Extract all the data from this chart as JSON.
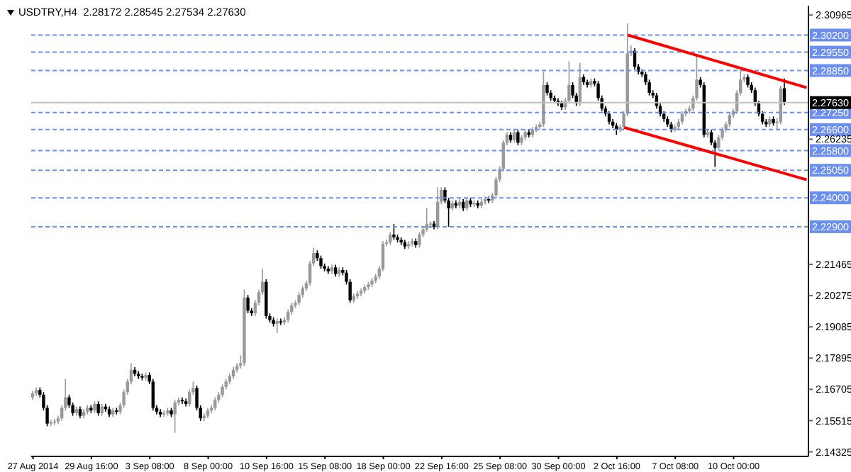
{
  "chart_data": {
    "type": "candlestick",
    "title": "USDTRY,H4  2.28172 2.28545 2.27534 2.27630",
    "categories": [
      "27 Aug 2014",
      null,
      null,
      null,
      null,
      null,
      null,
      null,
      null,
      null,
      null,
      null,
      null,
      null,
      null,
      null,
      "29 Aug 16:00",
      null,
      null,
      null,
      null,
      null,
      null,
      null,
      null,
      null,
      null,
      null,
      null,
      null,
      null,
      null,
      "3 Sep 08:00",
      null,
      null,
      null,
      null,
      null,
      null,
      null,
      null,
      null,
      null,
      null,
      null,
      null,
      null,
      null,
      "8 Sep 00:00",
      null,
      null,
      null,
      null,
      null,
      null,
      null,
      null,
      null,
      null,
      null,
      null,
      null,
      null,
      null,
      "10 Sep 16:00",
      null,
      null,
      null,
      null,
      null,
      null,
      null,
      null,
      null,
      null,
      null,
      null,
      null,
      null,
      null,
      "15 Sep 08:00",
      null,
      null,
      null,
      null,
      null,
      null,
      null,
      null,
      null,
      null,
      null,
      null,
      null,
      null,
      null,
      "18 Sep 00:00",
      null,
      null,
      null,
      null,
      null,
      null,
      null,
      null,
      null,
      null,
      null,
      null,
      null,
      null,
      null,
      "22 Sep 16:00",
      null,
      null,
      null,
      null,
      null,
      null,
      null,
      null,
      null,
      null,
      null,
      null,
      null,
      null,
      null,
      "25 Sep 08:00",
      null,
      null,
      null,
      null,
      null,
      null,
      null,
      null,
      null,
      null,
      null,
      null,
      null,
      null,
      null,
      "30 Sep 00:00",
      null,
      null,
      null,
      null,
      null,
      null,
      null,
      null,
      null,
      null,
      null,
      null,
      null,
      null,
      null,
      "2 Oct 16:00",
      null,
      null,
      null,
      null,
      null,
      null,
      null,
      null,
      null,
      null,
      null,
      null,
      null,
      null,
      null,
      "7 Oct 08:00",
      null,
      null,
      null,
      null,
      null,
      null,
      null,
      null,
      null,
      null,
      null,
      null,
      null,
      null,
      null,
      "10 Oct 00:00",
      null,
      null,
      null,
      null,
      null,
      null,
      null,
      null,
      null,
      null,
      null,
      null,
      null,
      null,
      null,
      null,
      null,
      null,
      null,
      null
    ],
    "ohlc": [
      [
        2.164,
        2.1665,
        2.163,
        2.1655
      ],
      [
        2.1655,
        2.1678,
        2.1645,
        2.1668
      ],
      [
        2.1668,
        2.1678,
        2.164,
        2.165
      ],
      [
        2.165,
        2.166,
        2.159,
        2.16
      ],
      [
        2.16,
        2.161,
        2.153,
        2.154
      ],
      [
        2.154,
        2.1555,
        2.153,
        2.1545
      ],
      [
        2.1545,
        2.1558,
        2.1535,
        2.1548
      ],
      [
        2.1548,
        2.157,
        2.1538,
        2.156
      ],
      [
        2.156,
        2.161,
        2.155,
        2.16
      ],
      [
        2.16,
        2.171,
        2.159,
        2.164
      ],
      [
        2.164,
        2.165,
        2.16,
        2.161
      ],
      [
        2.161,
        2.162,
        2.157,
        2.158
      ],
      [
        2.158,
        2.1605,
        2.157,
        2.1595
      ],
      [
        2.1595,
        2.1605,
        2.156,
        2.157
      ],
      [
        2.157,
        2.1595,
        2.156,
        2.1585
      ],
      [
        2.1585,
        2.161,
        2.1575,
        2.16
      ],
      [
        2.16,
        2.161,
        2.158,
        2.159
      ],
      [
        2.159,
        2.1625,
        2.158,
        2.1615
      ],
      [
        2.1615,
        2.1625,
        2.157,
        2.158
      ],
      [
        2.158,
        2.1615,
        2.157,
        2.1605
      ],
      [
        2.1605,
        2.1615,
        2.1585,
        2.1595
      ],
      [
        2.1595,
        2.1605,
        2.1565,
        2.1575
      ],
      [
        2.1575,
        2.16,
        2.1565,
        2.159
      ],
      [
        2.159,
        2.16,
        2.1575,
        2.1585
      ],
      [
        2.1585,
        2.162,
        2.1575,
        2.161
      ],
      [
        2.161,
        2.167,
        2.16,
        2.166
      ],
      [
        2.166,
        2.171,
        2.165,
        2.17
      ],
      [
        2.17,
        2.177,
        2.169,
        2.1745
      ],
      [
        2.1745,
        2.1755,
        2.172,
        2.173
      ],
      [
        2.173,
        2.174,
        2.171,
        2.172
      ],
      [
        2.172,
        2.173,
        2.1705,
        2.1715
      ],
      [
        2.1715,
        2.1735,
        2.1705,
        2.1725
      ],
      [
        2.1725,
        2.1735,
        2.169,
        2.17
      ],
      [
        2.17,
        2.171,
        2.159,
        2.16
      ],
      [
        2.16,
        2.161,
        2.1575,
        2.1585
      ],
      [
        2.1585,
        2.1595,
        2.1565,
        2.1575
      ],
      [
        2.1575,
        2.159,
        2.1565,
        2.158
      ],
      [
        2.158,
        2.16,
        2.157,
        2.159
      ],
      [
        2.159,
        2.16,
        2.1565,
        2.1575
      ],
      [
        2.1575,
        2.163,
        2.1505,
        2.162
      ],
      [
        2.162,
        2.164,
        2.161,
        2.163
      ],
      [
        2.163,
        2.164,
        2.1615,
        2.1625
      ],
      [
        2.1625,
        2.1635,
        2.1605,
        2.1615
      ],
      [
        2.1615,
        2.167,
        2.1605,
        2.166
      ],
      [
        2.166,
        2.17,
        2.165,
        2.1675
      ],
      [
        2.1675,
        2.1685,
        2.159,
        2.16
      ],
      [
        2.16,
        2.161,
        2.155,
        2.156
      ],
      [
        2.156,
        2.158,
        2.155,
        2.157
      ],
      [
        2.157,
        2.16,
        2.156,
        2.159
      ],
      [
        2.159,
        2.161,
        2.158,
        2.16
      ],
      [
        2.16,
        2.164,
        2.159,
        2.163
      ],
      [
        2.163,
        2.166,
        2.162,
        2.165
      ],
      [
        2.165,
        2.169,
        2.164,
        2.168
      ],
      [
        2.168,
        2.171,
        2.167,
        2.17
      ],
      [
        2.17,
        2.173,
        2.169,
        2.172
      ],
      [
        2.172,
        2.1755,
        2.171,
        2.1745
      ],
      [
        2.1745,
        2.177,
        2.1735,
        2.176
      ],
      [
        2.176,
        2.18,
        2.175,
        2.177
      ],
      [
        2.177,
        2.205,
        2.176,
        2.202
      ],
      [
        2.202,
        2.203,
        2.196,
        2.197
      ],
      [
        2.197,
        2.198,
        2.195,
        2.196
      ],
      [
        2.196,
        2.201,
        2.195,
        2.2
      ],
      [
        2.2,
        2.205,
        2.199,
        2.204
      ],
      [
        2.204,
        2.213,
        2.203,
        2.208
      ],
      [
        2.208,
        2.209,
        2.194,
        2.195
      ],
      [
        2.195,
        2.196,
        2.1925,
        2.1935
      ],
      [
        2.1935,
        2.1945,
        2.191,
        2.192
      ],
      [
        2.192,
        2.194,
        2.1885,
        2.193
      ],
      [
        2.193,
        2.194,
        2.1915,
        2.1925
      ],
      [
        2.1925,
        2.1945,
        2.1915,
        2.1935
      ],
      [
        2.1935,
        2.1975,
        2.1925,
        2.1965
      ],
      [
        2.1965,
        2.2,
        2.1955,
        2.199
      ],
      [
        2.199,
        2.201,
        2.198,
        2.2
      ],
      [
        2.2,
        2.204,
        2.199,
        2.203
      ],
      [
        2.203,
        2.2065,
        2.202,
        2.2055
      ],
      [
        2.2055,
        2.2085,
        2.2045,
        2.2075
      ],
      [
        2.2075,
        2.216,
        2.2065,
        2.215
      ],
      [
        2.215,
        2.221,
        2.214,
        2.219
      ],
      [
        2.219,
        2.22,
        2.216,
        2.217
      ],
      [
        2.217,
        2.218,
        2.213,
        2.214
      ],
      [
        2.214,
        2.215,
        2.212,
        2.213
      ],
      [
        2.213,
        2.214,
        2.211,
        2.212
      ],
      [
        2.212,
        2.2145,
        2.211,
        2.2135
      ],
      [
        2.2135,
        2.2145,
        2.21,
        2.211
      ],
      [
        2.211,
        2.2135,
        2.21,
        2.2125
      ],
      [
        2.2125,
        2.2135,
        2.2105,
        2.2115
      ],
      [
        2.2115,
        2.2125,
        2.207,
        2.208
      ],
      [
        2.208,
        2.209,
        2.2,
        2.201
      ],
      [
        2.201,
        2.2035,
        2.2,
        2.2025
      ],
      [
        2.2025,
        2.2045,
        2.2015,
        2.2035
      ],
      [
        2.2035,
        2.2055,
        2.2025,
        2.2045
      ],
      [
        2.2045,
        2.207,
        2.2035,
        2.206
      ],
      [
        2.206,
        2.208,
        2.205,
        2.207
      ],
      [
        2.207,
        2.2095,
        2.206,
        2.2085
      ],
      [
        2.2085,
        2.211,
        2.2075,
        2.21
      ],
      [
        2.21,
        2.214,
        2.209,
        2.213
      ],
      [
        2.213,
        2.2235,
        2.212,
        2.2225
      ],
      [
        2.2225,
        2.224,
        2.2215,
        2.223
      ],
      [
        2.223,
        2.227,
        2.222,
        2.226
      ],
      [
        2.226,
        2.23,
        2.224,
        2.225
      ],
      [
        2.225,
        2.226,
        2.223,
        2.224
      ],
      [
        2.224,
        2.225,
        2.222,
        2.223
      ],
      [
        2.223,
        2.224,
        2.2205,
        2.2215
      ],
      [
        2.2215,
        2.2235,
        2.2205,
        2.2225
      ],
      [
        2.2225,
        2.2245,
        2.2215,
        2.2235
      ],
      [
        2.2235,
        2.2245,
        2.221,
        2.222
      ],
      [
        2.222,
        2.227,
        2.221,
        2.226
      ],
      [
        2.226,
        2.229,
        2.225,
        2.228
      ],
      [
        2.228,
        2.236,
        2.227,
        2.23
      ],
      [
        2.23,
        2.231,
        2.2285,
        2.2302
      ],
      [
        2.2302,
        2.2312,
        2.228,
        2.229
      ],
      [
        2.229,
        2.244,
        2.228,
        2.2385
      ],
      [
        2.2385,
        2.244,
        2.2375,
        2.243
      ],
      [
        2.243,
        2.244,
        2.238,
        2.239
      ],
      [
        2.239,
        2.24,
        2.229,
        2.236
      ],
      [
        2.236,
        2.239,
        2.235,
        2.238
      ],
      [
        2.238,
        2.239,
        2.236,
        2.237
      ],
      [
        2.237,
        2.2395,
        2.236,
        2.2385
      ],
      [
        2.2385,
        2.2395,
        2.235,
        2.236
      ],
      [
        2.236,
        2.24,
        2.235,
        2.239
      ],
      [
        2.239,
        2.24,
        2.2365,
        2.2375
      ],
      [
        2.2375,
        2.239,
        2.2365,
        2.238
      ],
      [
        2.238,
        2.239,
        2.236,
        2.237
      ],
      [
        2.237,
        2.2395,
        2.236,
        2.2385
      ],
      [
        2.2385,
        2.2405,
        2.2375,
        2.2395
      ],
      [
        2.2395,
        2.2405,
        2.238,
        2.239
      ],
      [
        2.239,
        2.242,
        2.238,
        2.241
      ],
      [
        2.241,
        2.248,
        2.24,
        2.247
      ],
      [
        2.247,
        2.252,
        2.246,
        2.251
      ],
      [
        2.251,
        2.262,
        2.25,
        2.261
      ],
      [
        2.261,
        2.265,
        2.26,
        2.264
      ],
      [
        2.264,
        2.265,
        2.261,
        2.262
      ],
      [
        2.262,
        2.266,
        2.261,
        2.265
      ],
      [
        2.265,
        2.266,
        2.26,
        2.261
      ],
      [
        2.261,
        2.264,
        2.26,
        2.263
      ],
      [
        2.263,
        2.266,
        2.262,
        2.265
      ],
      [
        2.265,
        2.266,
        2.263,
        2.264
      ],
      [
        2.264,
        2.267,
        2.263,
        2.266
      ],
      [
        2.266,
        2.268,
        2.265,
        2.267
      ],
      [
        2.267,
        2.269,
        2.266,
        2.268
      ],
      [
        2.268,
        2.288,
        2.267,
        2.283
      ],
      [
        2.283,
        2.284,
        2.279,
        2.28
      ],
      [
        2.28,
        2.281,
        2.277,
        2.278
      ],
      [
        2.278,
        2.279,
        2.276,
        2.277
      ],
      [
        2.277,
        2.278,
        2.275,
        2.276
      ],
      [
        2.276,
        2.277,
        2.2735,
        2.2745
      ],
      [
        2.2745,
        2.278,
        2.2735,
        2.277
      ],
      [
        2.277,
        2.292,
        2.276,
        2.283
      ],
      [
        2.283,
        2.284,
        2.278,
        2.279
      ],
      [
        2.279,
        2.28,
        2.275,
        2.276
      ],
      [
        2.276,
        2.2915,
        2.275,
        2.286
      ],
      [
        2.286,
        2.287,
        2.283,
        2.284
      ],
      [
        2.284,
        2.285,
        2.282,
        2.283
      ],
      [
        2.283,
        2.2855,
        2.282,
        2.2845
      ],
      [
        2.2845,
        2.2855,
        2.2825,
        2.2835
      ],
      [
        2.2835,
        2.2845,
        2.277,
        2.278
      ],
      [
        2.278,
        2.279,
        2.273,
        2.274
      ],
      [
        2.274,
        2.275,
        2.271,
        2.272
      ],
      [
        2.272,
        2.273,
        2.268,
        2.269
      ],
      [
        2.269,
        2.27,
        2.2665,
        2.2675
      ],
      [
        2.2675,
        2.2685,
        2.264,
        2.266
      ],
      [
        2.266,
        2.268,
        2.265,
        2.267
      ],
      [
        2.267,
        2.273,
        2.266,
        2.272
      ],
      [
        2.272,
        2.3065,
        2.271,
        2.295
      ],
      [
        2.295,
        2.298,
        2.294,
        2.296
      ],
      [
        2.296,
        2.297,
        2.289,
        2.29
      ],
      [
        2.29,
        2.291,
        2.287,
        2.288
      ],
      [
        2.288,
        2.289,
        2.286,
        2.287
      ],
      [
        2.287,
        2.288,
        2.283,
        2.284
      ],
      [
        2.284,
        2.285,
        2.279,
        2.28
      ],
      [
        2.28,
        2.281,
        2.278,
        2.279
      ],
      [
        2.279,
        2.28,
        2.274,
        2.275
      ],
      [
        2.275,
        2.276,
        2.271,
        2.272
      ],
      [
        2.272,
        2.273,
        2.269,
        2.27
      ],
      [
        2.27,
        2.271,
        2.267,
        2.268
      ],
      [
        2.268,
        2.269,
        2.265,
        2.266
      ],
      [
        2.266,
        2.268,
        2.265,
        2.267
      ],
      [
        2.267,
        2.27,
        2.266,
        2.269
      ],
      [
        2.269,
        2.273,
        2.268,
        2.272
      ],
      [
        2.272,
        2.274,
        2.271,
        2.273
      ],
      [
        2.273,
        2.275,
        2.272,
        2.274
      ],
      [
        2.274,
        2.279,
        2.273,
        2.278
      ],
      [
        2.278,
        2.2939,
        2.277,
        2.285
      ],
      [
        2.285,
        2.286,
        2.282,
        2.283
      ],
      [
        2.283,
        2.284,
        2.263,
        2.264
      ],
      [
        2.264,
        2.266,
        2.263,
        2.265
      ],
      [
        2.265,
        2.266,
        2.26,
        2.261
      ],
      [
        2.261,
        2.262,
        2.2518,
        2.259
      ],
      [
        2.259,
        2.264,
        2.258,
        2.263
      ],
      [
        2.263,
        2.267,
        2.262,
        2.266
      ],
      [
        2.266,
        2.269,
        2.265,
        2.268
      ],
      [
        2.268,
        2.2725,
        2.267,
        2.2715
      ],
      [
        2.2715,
        2.274,
        2.2705,
        2.273
      ],
      [
        2.273,
        2.281,
        2.272,
        2.28
      ],
      [
        2.28,
        2.2885,
        2.279,
        2.285
      ],
      [
        2.285,
        2.287,
        2.284,
        2.286
      ],
      [
        2.286,
        2.287,
        2.282,
        2.283
      ],
      [
        2.283,
        2.284,
        2.28,
        2.281
      ],
      [
        2.281,
        2.282,
        2.275,
        2.276
      ],
      [
        2.276,
        2.277,
        2.271,
        2.272
      ],
      [
        2.272,
        2.273,
        2.268,
        2.269
      ],
      [
        2.269,
        2.27,
        2.267,
        2.268
      ],
      [
        2.268,
        2.271,
        2.267,
        2.27
      ],
      [
        2.27,
        2.271,
        2.2675,
        2.2685
      ],
      [
        2.2685,
        2.2705,
        2.266,
        2.269
      ],
      [
        2.269,
        2.2827,
        2.268,
        2.2817
      ],
      [
        2.28172,
        2.28545,
        2.27534,
        2.2763
      ],
      null,
      null,
      null,
      null,
      null,
      null
    ],
    "series": [
      {
        "type": "line",
        "color": "#ff0000",
        "values": [
          null,
          null,
          null,
          null,
          null,
          null,
          null,
          null,
          null,
          null,
          null,
          null,
          null,
          null,
          null,
          null,
          null,
          null,
          null,
          null,
          null,
          null,
          null,
          null,
          null,
          null,
          null,
          null,
          null,
          null,
          null,
          null,
          null,
          null,
          null,
          null,
          null,
          null,
          null,
          null,
          null,
          null,
          null,
          null,
          null,
          null,
          null,
          null,
          null,
          null,
          null,
          null,
          null,
          null,
          null,
          null,
          null,
          null,
          null,
          null,
          null,
          null,
          null,
          null,
          null,
          null,
          null,
          null,
          null,
          null,
          null,
          null,
          null,
          null,
          null,
          null,
          null,
          null,
          null,
          null,
          null,
          null,
          null,
          null,
          null,
          null,
          null,
          null,
          null,
          null,
          null,
          null,
          null,
          null,
          null,
          null,
          null,
          null,
          null,
          null,
          null,
          null,
          null,
          null,
          null,
          null,
          null,
          null,
          null,
          null,
          null,
          null,
          null,
          null,
          null,
          null,
          null,
          null,
          null,
          null,
          null,
          null,
          null,
          null,
          null,
          null,
          null,
          null,
          null,
          null,
          null,
          null,
          null,
          null,
          null,
          null,
          null,
          null,
          null,
          null,
          null,
          null,
          null,
          null,
          null,
          null,
          null,
          null,
          null,
          null,
          null,
          null,
          null,
          null,
          null,
          null,
          null,
          null,
          null,
          null,
          null,
          null,
          null,
          2.302,
          null,
          null,
          null,
          null,
          null,
          null,
          null,
          null,
          null,
          null,
          null,
          null,
          null,
          null,
          null,
          null,
          null,
          null,
          null,
          null,
          null,
          null,
          null,
          null,
          null,
          null,
          null,
          null,
          null,
          null,
          null,
          null,
          null,
          null,
          null,
          null,
          null,
          null,
          null,
          null,
          null,
          null,
          null,
          null,
          null,
          null,
          null,
          null,
          2.282
        ]
      },
      {
        "type": "line",
        "color": "#ff0000",
        "values": [
          null,
          null,
          null,
          null,
          null,
          null,
          null,
          null,
          null,
          null,
          null,
          null,
          null,
          null,
          null,
          null,
          null,
          null,
          null,
          null,
          null,
          null,
          null,
          null,
          null,
          null,
          null,
          null,
          null,
          null,
          null,
          null,
          null,
          null,
          null,
          null,
          null,
          null,
          null,
          null,
          null,
          null,
          null,
          null,
          null,
          null,
          null,
          null,
          null,
          null,
          null,
          null,
          null,
          null,
          null,
          null,
          null,
          null,
          null,
          null,
          null,
          null,
          null,
          null,
          null,
          null,
          null,
          null,
          null,
          null,
          null,
          null,
          null,
          null,
          null,
          null,
          null,
          null,
          null,
          null,
          null,
          null,
          null,
          null,
          null,
          null,
          null,
          null,
          null,
          null,
          null,
          null,
          null,
          null,
          null,
          null,
          null,
          null,
          null,
          null,
          null,
          null,
          null,
          null,
          null,
          null,
          null,
          null,
          null,
          null,
          null,
          null,
          null,
          null,
          null,
          null,
          null,
          null,
          null,
          null,
          null,
          null,
          null,
          null,
          null,
          null,
          null,
          null,
          null,
          null,
          null,
          null,
          null,
          null,
          null,
          null,
          null,
          null,
          null,
          null,
          null,
          null,
          null,
          null,
          null,
          null,
          null,
          null,
          null,
          null,
          null,
          null,
          null,
          null,
          null,
          null,
          null,
          null,
          null,
          null,
          null,
          null,
          2.2668,
          null,
          null,
          null,
          null,
          null,
          null,
          null,
          null,
          null,
          null,
          null,
          null,
          null,
          null,
          null,
          null,
          null,
          null,
          null,
          null,
          null,
          null,
          null,
          null,
          null,
          null,
          null,
          null,
          null,
          null,
          null,
          null,
          null,
          null,
          null,
          null,
          null,
          null,
          null,
          null,
          null,
          null,
          null,
          null,
          null,
          null,
          null,
          null,
          null,
          2.2469
        ]
      }
    ],
    "ylim": [
      2.1415,
      2.3132
    ],
    "yticks": [
      2.14325,
      2.15515,
      2.16705,
      2.17895,
      2.19085,
      2.20275,
      2.21465,
      2.26235,
      2.30965
    ],
    "ref_lines": [
      {
        "axis": "y",
        "value": 2.302,
        "label": "2.30200",
        "color": "#6b8ff0",
        "line_style": "dashed"
      },
      {
        "axis": "y",
        "value": 2.2955,
        "label": "2.29550",
        "color": "#6b8ff0",
        "line_style": "dashed"
      },
      {
        "axis": "y",
        "value": 2.2885,
        "label": "2.28850",
        "color": "#6b8ff0",
        "line_style": "dashed"
      },
      {
        "axis": "y",
        "value": 2.2725,
        "label": "2.27250",
        "color": "#6b8ff0",
        "line_style": "dashed"
      },
      {
        "axis": "y",
        "value": 2.266,
        "label": "2.26600",
        "color": "#6b8ff0",
        "line_style": "dashed"
      },
      {
        "axis": "y",
        "value": 2.258,
        "label": "2.25800",
        "color": "#6b8ff0",
        "line_style": "dashed"
      },
      {
        "axis": "y",
        "value": 2.2505,
        "label": "2.25050",
        "color": "#6b8ff0",
        "line_style": "dashed"
      },
      {
        "axis": "y",
        "value": 2.24,
        "label": "2.24000",
        "color": "#6b8ff0",
        "line_style": "dashed"
      },
      {
        "axis": "y",
        "value": 2.229,
        "label": "2.22900",
        "color": "#6b8ff0",
        "line_style": "dashed"
      },
      {
        "axis": "y",
        "value": 2.2763,
        "label": "2.27630",
        "color": "#c0c0c0",
        "line_style": "solid"
      }
    ]
  }
}
